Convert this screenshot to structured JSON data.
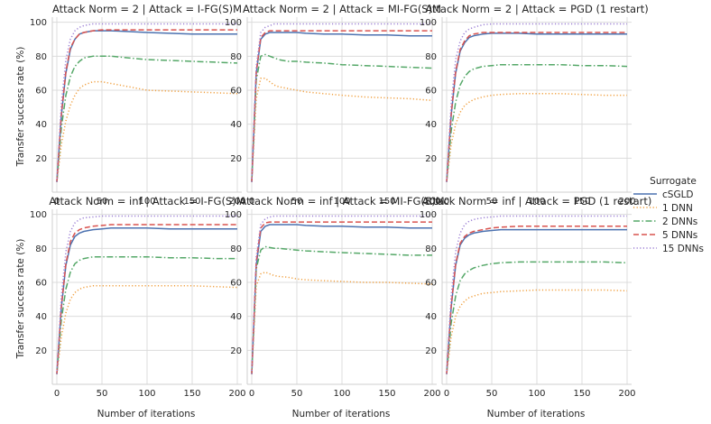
{
  "chart_data": {
    "type": "line",
    "grid": true,
    "xlabel": "Number of iterations",
    "ylabel": "Transfer success rate (%)",
    "xlim": [
      -5,
      205
    ],
    "ylim": [
      0,
      103
    ],
    "xticks": [
      0,
      50,
      100,
      150,
      200
    ],
    "yticks": [
      20,
      40,
      60,
      80,
      100
    ],
    "legend": {
      "title": "Surrogate",
      "placement": "right",
      "entries": [
        "cSGLD",
        "1 DNN",
        "2 DNNs",
        "5 DNNs",
        "15 DNNs"
      ]
    },
    "series_styles": [
      {
        "name": "cSGLD",
        "color": "#4c72b0",
        "dash": "solid"
      },
      {
        "name": "1 DNN",
        "color": "#f0a040",
        "dash": "dotted"
      },
      {
        "name": "2 DNNs",
        "color": "#55a868",
        "dash": "dashdot"
      },
      {
        "name": "5 DNNs",
        "color": "#d9534f",
        "dash": "dashed"
      },
      {
        "name": "15 DNNs",
        "color": "#9b7fd4",
        "dash": "dotted"
      }
    ],
    "x": [
      0,
      5,
      10,
      15,
      20,
      25,
      30,
      40,
      50,
      60,
      80,
      100,
      125,
      150,
      175,
      200
    ],
    "panels": [
      {
        "title": "Attack Norm = 2 | Attack = I-FG(S)M",
        "series": [
          {
            "name": "cSGLD",
            "values": [
              6,
              45,
              70,
              84,
              90,
              93,
              94,
              95,
              95,
              95,
              94.5,
              94,
              93.5,
              93,
              93,
              93
            ]
          },
          {
            "name": "1 DNN",
            "values": [
              6,
              28,
              42,
              51,
              57,
              61,
              63,
              65,
              65,
              64,
              62,
              60,
              59.5,
              59,
              58.5,
              58
            ]
          },
          {
            "name": "2 DNNs",
            "values": [
              6,
              38,
              57,
              68,
              74,
              77,
              79,
              80,
              80,
              80,
              79,
              78,
              77.5,
              77,
              76.5,
              76
            ]
          },
          {
            "name": "5 DNNs",
            "values": [
              6,
              46,
              71,
              85,
              90,
              93,
              94,
              95,
              95.5,
              95.5,
              95.5,
              95.5,
              95.5,
              95.5,
              95.5,
              95.5
            ]
          },
          {
            "name": "15 DNNs",
            "values": [
              6,
              52,
              78,
              90,
              95,
              97,
              98,
              99,
              99,
              99,
              99,
              99,
              99,
              99,
              99,
              99
            ]
          }
        ]
      },
      {
        "title": "Attack Norm = 2 | Attack = MI-FG(S)M",
        "series": [
          {
            "name": "cSGLD",
            "values": [
              6,
              70,
              90,
              93,
              94,
              94,
              94,
              94,
              94,
              93.5,
              93,
              93,
              92.5,
              92.5,
              92,
              92
            ]
          },
          {
            "name": "1 DNN",
            "values": [
              6,
              55,
              67,
              67,
              65,
              63,
              62,
              61,
              60,
              59,
              58,
              57,
              56,
              55.5,
              55,
              54
            ]
          },
          {
            "name": "2 DNNs",
            "values": [
              6,
              66,
              80,
              81,
              80,
              79,
              78,
              77,
              77,
              76.5,
              76,
              75,
              74.5,
              74,
              73.5,
              73
            ]
          },
          {
            "name": "5 DNNs",
            "values": [
              6,
              71,
              91,
              94,
              95,
              95,
              95,
              95,
              95,
              95,
              95,
              95,
              95,
              95,
              95,
              95
            ]
          },
          {
            "name": "15 DNNs",
            "values": [
              6,
              74,
              94,
              97,
              98,
              99,
              99,
              99,
              99,
              99,
              99,
              99,
              99,
              99,
              99,
              99
            ]
          }
        ]
      },
      {
        "title": "Attack Norm = 2 | Attack = PGD (1 restart)",
        "series": [
          {
            "name": "cSGLD",
            "values": [
              6,
              45,
              70,
              83,
              88,
              91,
              92,
              93,
              93.5,
              93.5,
              93.5,
              93,
              93,
              93,
              93,
              93
            ]
          },
          {
            "name": "1 DNN",
            "values": [
              6,
              28,
              40,
              47,
              51,
              53,
              54.5,
              56,
              57,
              57.5,
              58,
              58,
              58,
              57.5,
              57,
              57
            ]
          },
          {
            "name": "2 DNNs",
            "values": [
              6,
              36,
              53,
              63,
              68,
              71,
              72.5,
              74,
              74.5,
              75,
              75,
              75,
              75,
              74.5,
              74.5,
              74
            ]
          },
          {
            "name": "5 DNNs",
            "values": [
              6,
              46,
              71,
              84,
              89,
              92,
              93,
              94,
              94,
              94,
              94,
              94,
              94,
              94,
              94,
              94
            ]
          },
          {
            "name": "15 DNNs",
            "values": [
              6,
              52,
              78,
              89,
              94,
              96,
              97,
              98.5,
              99,
              99,
              99,
              99,
              99,
              99,
              99,
              99
            ]
          }
        ]
      },
      {
        "title": "Attack Norm = inf | Attack = I-FG(S)M",
        "series": [
          {
            "name": "cSGLD",
            "values": [
              6,
              45,
              70,
              82,
              87,
              89,
              90,
              91,
              91.5,
              92,
              92,
              92,
              91.5,
              91.5,
              91.5,
              91.5
            ]
          },
          {
            "name": "1 DNN",
            "values": [
              6,
              28,
              42,
              50,
              54,
              56,
              57,
              58,
              58,
              58,
              58,
              58,
              58,
              58,
              57.5,
              57
            ]
          },
          {
            "name": "2 DNNs",
            "values": [
              6,
              38,
              56,
              66,
              71,
              73,
              74,
              75,
              75,
              75,
              75,
              75,
              74.5,
              74.5,
              74,
              74
            ]
          },
          {
            "name": "5 DNNs",
            "values": [
              6,
              46,
              71,
              84,
              89,
              91,
              92,
              93,
              93.5,
              94,
              94,
              94,
              94,
              94,
              94,
              94
            ]
          },
          {
            "name": "15 DNNs",
            "values": [
              6,
              52,
              78,
              90,
              95,
              97,
              98,
              98.5,
              99,
              99,
              99,
              99,
              99,
              99,
              99,
              99
            ]
          }
        ]
      },
      {
        "title": "Attack Norm = inf | Attack = MI-FG(S)M",
        "series": [
          {
            "name": "cSGLD",
            "values": [
              6,
              70,
              90,
              93,
              94,
              94,
              94,
              94,
              94,
              93.5,
              93,
              93,
              92.5,
              92.5,
              92,
              92
            ]
          },
          {
            "name": "1 DNN",
            "values": [
              6,
              58,
              65,
              66,
              65,
              64,
              63.5,
              63,
              62,
              61.5,
              61,
              60.5,
              60,
              60,
              59.5,
              59
            ]
          },
          {
            "name": "2 DNNs",
            "values": [
              6,
              68,
              79,
              81,
              80.5,
              80,
              80,
              79.5,
              79,
              78.5,
              78,
              77.5,
              77,
              76.5,
              76,
              76
            ]
          },
          {
            "name": "5 DNNs",
            "values": [
              6,
              72,
              92,
              95,
              95.5,
              95.5,
              95.5,
              95.5,
              95.5,
              95.5,
              95.5,
              95.5,
              95.5,
              95.5,
              95.5,
              95.5
            ]
          },
          {
            "name": "15 DNNs",
            "values": [
              6,
              75,
              94,
              97.5,
              98.5,
              99,
              99,
              99,
              99,
              99,
              99,
              99,
              99,
              99,
              99,
              99
            ]
          }
        ]
      },
      {
        "title": "Attack Norm = inf | Attack = PGD (1 restart)",
        "series": [
          {
            "name": "cSGLD",
            "values": [
              6,
              45,
              70,
              82,
              86,
              88,
              89,
              90,
              90.5,
              91,
              91,
              91,
              91,
              91,
              91,
              91
            ]
          },
          {
            "name": "1 DNN",
            "values": [
              6,
              28,
              40,
              46,
              49,
              51,
              52,
              53.5,
              54,
              54.5,
              55,
              55.5,
              55.5,
              55.5,
              55.5,
              55
            ]
          },
          {
            "name": "2 DNNs",
            "values": [
              6,
              36,
              52,
              61,
              65,
              67,
              68.5,
              70,
              71,
              71.5,
              72,
              72,
              72,
              72,
              72,
              71.5
            ]
          },
          {
            "name": "5 DNNs",
            "values": [
              6,
              46,
              71,
              83,
              87,
              89,
              90,
              91,
              92,
              92.5,
              93,
              93,
              93,
              93,
              93,
              93
            ]
          },
          {
            "name": "15 DNNs",
            "values": [
              6,
              52,
              78,
              89,
              94,
              96,
              97,
              98,
              98.5,
              99,
              99,
              99,
              99,
              99,
              99,
              99
            ]
          }
        ]
      }
    ]
  }
}
